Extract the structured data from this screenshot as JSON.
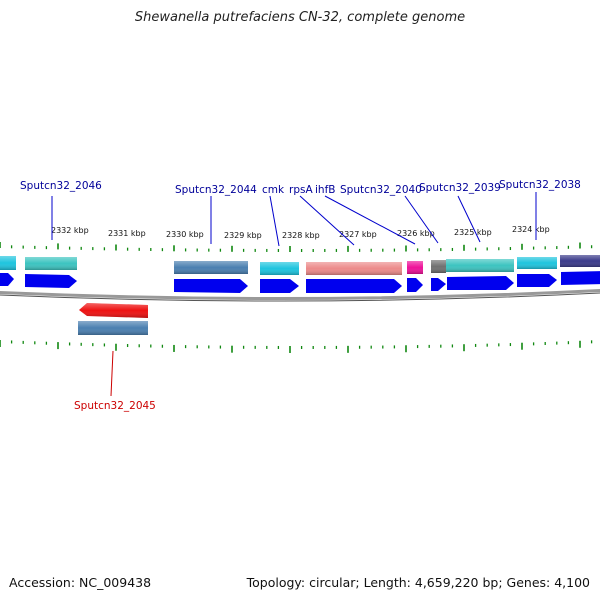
{
  "title": "Shewanella putrefaciens CN-32, complete genome",
  "footer": {
    "accession": "Accession: NC_009438",
    "summary": "Topology: circular; Length: 4,659,220 bp; Genes: 4,100"
  },
  "colors": {
    "cds": "#0000ee",
    "label_blue": "#000099",
    "label_red": "#cc0000",
    "tick": "#118811",
    "backbone": "#888888",
    "cyan": "#1ec4de",
    "teal": "#3cc4c0",
    "steel": "#4a7fb0",
    "salmon": "#ec8a8a",
    "magenta": "#ee1199",
    "gray": "#707070",
    "navy": "#3a3a8a",
    "red": "#ee1111"
  },
  "scale_labels": [
    "2332 kbp",
    "2331 kbp",
    "2330 kbp",
    "2329 kbp",
    "2328 kbp",
    "2327 kbp",
    "2326 kbp",
    "2325 kbp",
    "2324 kbp"
  ],
  "gene_labels": [
    {
      "id": "sputcn32-2046",
      "text": "Sputcn32_2046",
      "color": "blue"
    },
    {
      "id": "sputcn32-2044",
      "text": "Sputcn32_2044",
      "color": "blue"
    },
    {
      "id": "cmk",
      "text": "cmk",
      "color": "blue"
    },
    {
      "id": "rpsa",
      "text": "rpsA",
      "color": "blue"
    },
    {
      "id": "ihfb",
      "text": "ihfB",
      "color": "blue"
    },
    {
      "id": "sputcn32-2040",
      "text": "Sputcn32_2040",
      "color": "blue"
    },
    {
      "id": "sputcn32-2039",
      "text": "Sputcn32_2039",
      "color": "blue"
    },
    {
      "id": "sputcn32-2038",
      "text": "Sputcn32_2038",
      "color": "blue"
    },
    {
      "id": "sputcn32-2045",
      "text": "Sputcn32_2045",
      "color": "red"
    }
  ]
}
